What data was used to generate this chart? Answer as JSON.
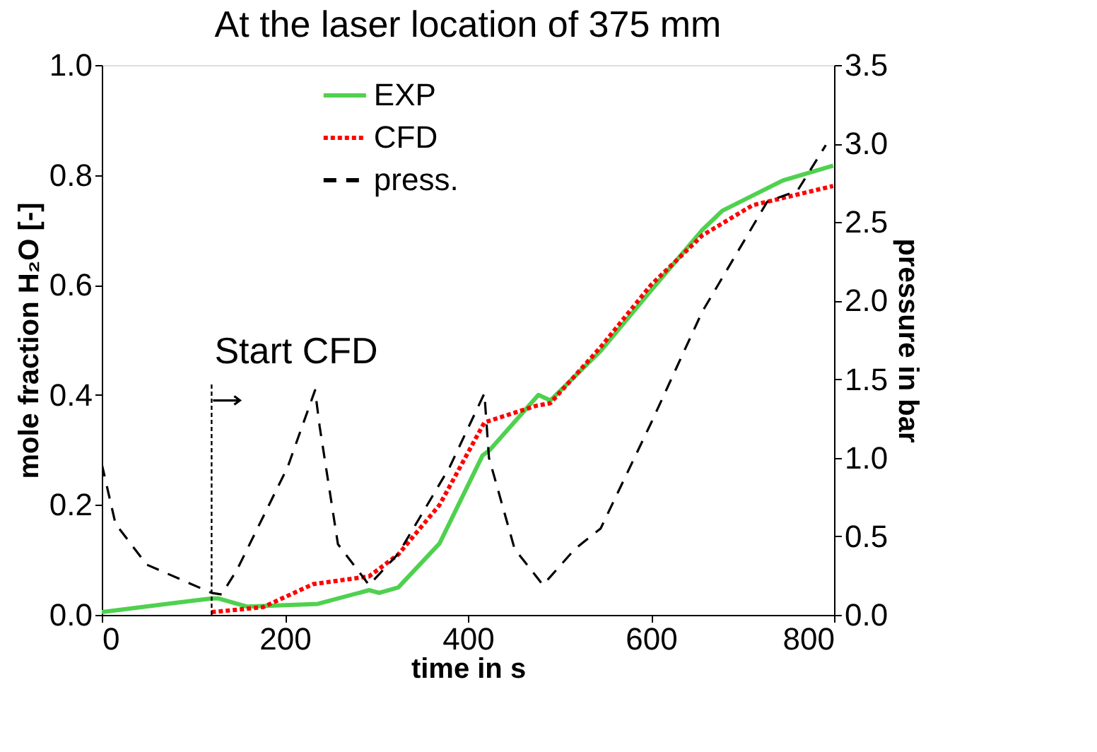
{
  "chart_data": {
    "type": "line",
    "title": "At the laser location of 375 mm",
    "xlabel": "time in s",
    "ylabel": "mole fraction H₂O [-]",
    "y2label": "pressure in bar",
    "xlim": [
      0,
      800
    ],
    "xticks": [
      0,
      200,
      400,
      600,
      800
    ],
    "ylim": [
      0,
      1.0
    ],
    "yticks": [
      {
        "value": 0,
        "label": "0.0"
      },
      {
        "value": 0.2,
        "label": "0.2"
      },
      {
        "value": 0.4,
        "label": "0.4"
      },
      {
        "value": 0.6,
        "label": "0.6"
      },
      {
        "value": 0.8,
        "label": "0.8"
      },
      {
        "value": 1.0,
        "label": "1.0"
      }
    ],
    "y2lim": [
      0,
      3.5
    ],
    "y2ticks": [
      {
        "value": 0,
        "label": "0.0"
      },
      {
        "value": 0.5,
        "label": "0.5"
      },
      {
        "value": 1.0,
        "label": "1.0"
      },
      {
        "value": 1.5,
        "label": "1.5"
      },
      {
        "value": 2.0,
        "label": "2.0"
      },
      {
        "value": 2.5,
        "label": "2.5"
      },
      {
        "value": 3.0,
        "label": "3.0"
      },
      {
        "value": 3.5,
        "label": "3.5"
      }
    ],
    "grid": false,
    "legend": "top",
    "marker": "none",
    "series": [
      {
        "name": "EXP",
        "color": "#4fd14f",
        "line_style": "solid",
        "x": [
          0,
          120,
          127,
          159,
          236,
          292,
          303,
          324,
          369,
          416,
          424,
          477,
          490,
          545,
          600,
          656,
          678,
          744,
          799
        ],
        "values": [
          0.005,
          0.03,
          0.03,
          0.015,
          0.02,
          0.045,
          0.04,
          0.05,
          0.13,
          0.29,
          0.3,
          0.4,
          0.39,
          0.48,
          0.59,
          0.7,
          0.735,
          0.79,
          0.817
        ]
      },
      {
        "name": "CFD",
        "color": "#ff0000",
        "line_style": "dotted",
        "x": [
          120,
          176,
          231,
          292,
          324,
          369,
          418,
          474,
          490,
          545,
          600,
          656,
          711,
          799
        ],
        "values": [
          0.005,
          0.014,
          0.056,
          0.07,
          0.11,
          0.2,
          0.35,
          0.38,
          0.385,
          0.487,
          0.6,
          0.69,
          0.745,
          0.78
        ]
      },
      {
        "name": "press.",
        "color": "#000000",
        "line_style": "dashed",
        "axis": "y2",
        "x": [
          0,
          15,
          49,
          120,
          131,
          148,
          203,
          233,
          238,
          258,
          292,
          324,
          380,
          418,
          423,
          451,
          482,
          517,
          545,
          600,
          656,
          727,
          760,
          791
        ],
        "values": [
          0.96,
          0.58,
          0.32,
          0.14,
          0.13,
          0.29,
          0.94,
          1.43,
          1.2,
          0.45,
          0.19,
          0.39,
          0.94,
          1.41,
          1.0,
          0.42,
          0.19,
          0.42,
          0.55,
          1.22,
          1.93,
          2.63,
          2.7,
          2.99
        ]
      }
    ],
    "ref_lines": [
      {
        "axis": "x",
        "value": 120,
        "label": "Start CFD",
        "line_style": "dotted",
        "color": "#000000"
      }
    ]
  }
}
